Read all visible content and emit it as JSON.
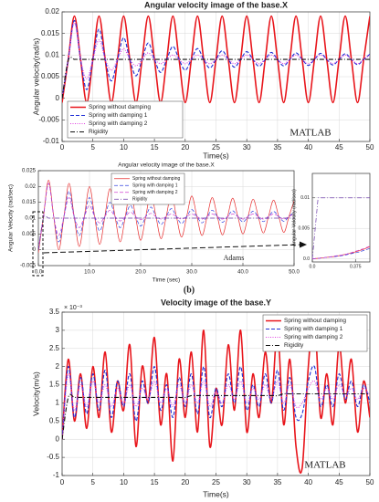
{
  "panel_label": "(b)",
  "chart_data": [
    {
      "type": "line",
      "title": "Angular velocity image of the base.X",
      "xlabel": "Time(s)",
      "ylabel": "Angular velocity(rad/s)",
      "annotation": "MATLAB",
      "xlim": [
        0,
        50
      ],
      "ylim": [
        -0.01,
        0.02
      ],
      "xticks": [
        0,
        5,
        10,
        15,
        20,
        25,
        30,
        35,
        40,
        45,
        50
      ],
      "yticks": [
        -0.01,
        -0.005,
        0,
        0.005,
        0.01,
        0.015,
        0.02
      ],
      "grid": true,
      "legend": "lower left",
      "x": [
        0,
        1,
        2,
        3,
        4,
        5,
        6,
        7,
        8,
        9,
        10,
        11,
        12,
        13,
        14,
        15,
        16,
        17,
        18,
        19,
        20,
        21,
        22,
        23,
        24,
        25,
        26,
        27,
        28,
        29,
        30,
        31,
        32,
        33,
        34,
        35,
        36,
        37,
        38,
        39,
        40,
        41,
        42,
        43,
        44,
        45,
        46,
        47,
        48,
        49,
        50
      ],
      "series": [
        {
          "name": "Spring without damping",
          "color": "#e8151b",
          "dash": "solid",
          "values": [
            -0.001,
            0.009,
            0.019,
            0.009,
            -0.001,
            0.009,
            0.019,
            0.009,
            -0.001,
            0.009,
            0.019,
            0.009,
            -0.001,
            0.009,
            0.019,
            0.009,
            -0.001,
            0.009,
            0.019,
            0.009,
            -0.001,
            0.009,
            0.019,
            0.009,
            -0.001,
            0.009,
            0.019,
            0.009,
            -0.001,
            0.009,
            0.019,
            0.009,
            -0.001,
            0.009,
            0.019,
            0.009,
            -0.001,
            0.009,
            0.019,
            0.009,
            -0.001,
            0.009,
            0.019,
            0.009,
            -0.001,
            0.009,
            0.019,
            0.009,
            -0.001,
            0.009,
            0.019
          ]
        },
        {
          "name": "Spring with damping 1",
          "color": "#1f2fd6",
          "dash": "dashed",
          "values": [
            0,
            0.009,
            0.018,
            0.009,
            0.002,
            0.009,
            0.016,
            0.009,
            0.004,
            0.009,
            0.014,
            0.009,
            0.0052,
            0.009,
            0.0128,
            0.009,
            0.006,
            0.009,
            0.012,
            0.009,
            0.0065,
            0.009,
            0.0115,
            0.009,
            0.007,
            0.009,
            0.011,
            0.009,
            0.0072,
            0.009,
            0.0108,
            0.009,
            0.0074,
            0.009,
            0.0106,
            0.009,
            0.0075,
            0.009,
            0.0105,
            0.009,
            0.0076,
            0.009,
            0.0104,
            0.009,
            0.0077,
            0.009,
            0.0103,
            0.009,
            0.0078,
            0.009,
            0.0102
          ]
        },
        {
          "name": "Spring with damping 2",
          "color": "#e040e0",
          "dash": "dotted",
          "values": [
            0.0005,
            0.009,
            0.0175,
            0.009,
            0.0045,
            0.009,
            0.0135,
            0.009,
            0.0065,
            0.009,
            0.0115,
            0.009,
            0.0075,
            0.009,
            0.0105,
            0.009,
            0.008,
            0.009,
            0.01,
            0.009,
            0.008,
            0.009,
            0.01,
            0.009,
            0.008,
            0.009,
            0.01,
            0.009,
            0.008,
            0.009,
            0.01,
            0.009,
            0.008,
            0.009,
            0.01,
            0.009,
            0.008,
            0.009,
            0.01,
            0.009,
            0.008,
            0.009,
            0.01,
            0.009,
            0.008,
            0.009,
            0.01,
            0.009,
            0.008,
            0.009,
            0.01
          ]
        },
        {
          "name": "Rigidity",
          "color": "#111111",
          "dash": "dashdot",
          "values": [
            0,
            0.0088,
            0.009,
            0.009,
            0.009,
            0.009,
            0.009,
            0.009,
            0.009,
            0.009,
            0.009,
            0.009,
            0.009,
            0.009,
            0.009,
            0.009,
            0.009,
            0.009,
            0.009,
            0.009,
            0.009,
            0.009,
            0.009,
            0.009,
            0.009,
            0.009,
            0.009,
            0.009,
            0.009,
            0.009,
            0.009,
            0.009,
            0.009,
            0.009,
            0.009,
            0.009,
            0.009,
            0.009,
            0.009,
            0.009,
            0.009,
            0.009,
            0.009,
            0.009,
            0.009,
            0.009,
            0.009,
            0.009,
            0.009,
            0.009,
            0.009
          ]
        }
      ]
    },
    {
      "type": "line",
      "title": "Angular velocity image of the base.X",
      "xlabel": "Time (sec)",
      "ylabel": "Angular Velocity (rad/sec)",
      "annotation": "Adams",
      "xlim": [
        0,
        50
      ],
      "ylim": [
        -0.005,
        0.025
      ],
      "xticks": [
        {
          "value": 0,
          "label": "0.0"
        },
        {
          "value": 10,
          "label": "10.0"
        },
        {
          "value": 20,
          "label": "20.0"
        },
        {
          "value": 30,
          "label": "30.0"
        },
        {
          "value": 40,
          "label": "40.0"
        },
        {
          "value": 50,
          "label": "50.0"
        }
      ],
      "yticks": [
        -0.005,
        0,
        0.005,
        0.01,
        0.015,
        0.02,
        0.025
      ],
      "grid": true,
      "legend": "upper center",
      "x": [
        0,
        1,
        2,
        3,
        4,
        5,
        6,
        7,
        8,
        9,
        10,
        11,
        12,
        13,
        14,
        15,
        16,
        17,
        18,
        19,
        20,
        21,
        22,
        23,
        24,
        25,
        26,
        27,
        28,
        29,
        30,
        31,
        32,
        33,
        34,
        35,
        36,
        37,
        38,
        39,
        40,
        41,
        42,
        43,
        44,
        45,
        46,
        47,
        48,
        49,
        50
      ],
      "series": [
        {
          "name": "Spring without damping",
          "color": "#e83030",
          "dash": "solid",
          "values": [
            -0.001,
            0.0105,
            0.022,
            0.0105,
            0,
            0.0105,
            0.021,
            0.0105,
            0.001,
            0.0105,
            0.02,
            0.0105,
            0.0017,
            0.0105,
            0.0193,
            0.0105,
            0.0025,
            0.0105,
            0.0185,
            0.0105,
            0.003,
            0.0105,
            0.018,
            0.0105,
            0.0035,
            0.0105,
            0.0175,
            0.0105,
            0.004,
            0.0105,
            0.017,
            0.0105,
            0.0045,
            0.0105,
            0.0165,
            0.0105,
            0.0047,
            0.0105,
            0.0163,
            0.0105,
            0.005,
            0.0105,
            0.016,
            0.0105,
            0.0053,
            0.0105,
            0.0157,
            0.0105,
            0.0055,
            0.0105,
            0.0155
          ]
        },
        {
          "name": "Spring with damping 1",
          "color": "#3040e0",
          "dash": "dashed",
          "values": [
            0,
            0.0105,
            0.021,
            0.0105,
            0.0025,
            0.0105,
            0.0185,
            0.0105,
            0.0045,
            0.0105,
            0.0165,
            0.0105,
            0.006,
            0.0105,
            0.015,
            0.0105,
            0.007,
            0.0105,
            0.014,
            0.0105,
            0.0075,
            0.0105,
            0.0135,
            0.0105,
            0.008,
            0.0105,
            0.013,
            0.0105,
            0.0083,
            0.0105,
            0.0127,
            0.0105,
            0.0085,
            0.0105,
            0.0125,
            0.0105,
            0.0087,
            0.0105,
            0.0123,
            0.0105,
            0.0088,
            0.0105,
            0.0122,
            0.0105,
            0.0089,
            0.0105,
            0.0121,
            0.0105,
            0.009,
            0.0105,
            0.012
          ]
        },
        {
          "name": "Spring with damping 2",
          "color": "#d040d0",
          "dash": "dashed",
          "values": [
            0,
            0.0105,
            0.021,
            0.0105,
            0.0045,
            0.0105,
            0.0165,
            0.0105,
            0.007,
            0.0105,
            0.014,
            0.0105,
            0.0085,
            0.0105,
            0.0125,
            0.0105,
            0.0091,
            0.0105,
            0.0119,
            0.0105,
            0.0095,
            0.0105,
            0.0115,
            0.0105,
            0.0097,
            0.0105,
            0.0113,
            0.0105,
            0.0097,
            0.0105,
            0.0113,
            0.0105,
            0.0097,
            0.0105,
            0.0113,
            0.0105,
            0.0097,
            0.0105,
            0.0113,
            0.0105,
            0.0097,
            0.0105,
            0.0113,
            0.0105,
            0.0097,
            0.0105,
            0.0113,
            0.0105,
            0.0097,
            0.0105,
            0.0113
          ]
        },
        {
          "name": "Rigidity",
          "color": "#6a3aa8",
          "dash": "dashdot",
          "values": [
            0,
            0.01,
            0.01,
            0.01,
            0.01,
            0.01,
            0.01,
            0.01,
            0.01,
            0.01,
            0.01,
            0.01,
            0.01,
            0.01,
            0.01,
            0.01,
            0.01,
            0.01,
            0.01,
            0.01,
            0.01,
            0.01,
            0.01,
            0.01,
            0.01,
            0.01,
            0.01,
            0.01,
            0.01,
            0.01,
            0.01,
            0.01,
            0.01,
            0.01,
            0.01,
            0.01,
            0.01,
            0.01,
            0.01,
            0.01,
            0.01,
            0.01,
            0.01,
            0.01,
            0.01,
            0.01,
            0.01,
            0.01,
            0.01,
            0.01,
            0.01
          ]
        }
      ]
    },
    {
      "type": "line",
      "ylabel": "Angular Velocity (rad/sec)",
      "xlim": [
        0,
        0.5
      ],
      "ylim": [
        -0.0005,
        0.014
      ],
      "xticks": [
        {
          "value": 0,
          "label": "0.0"
        },
        0.375
      ],
      "yticks": [
        {
          "value": 0,
          "label": "0.0"
        },
        0.005,
        0.01
      ],
      "grid": true,
      "x": [
        0,
        0.05,
        0.1,
        0.15,
        0.2,
        0.25,
        0.3,
        0.35,
        0.4,
        0.45,
        0.5
      ],
      "series": [
        {
          "color": "#e83030",
          "dash": "solid",
          "values": [
            0,
            0.0001,
            0.0002,
            0.0003,
            0.0004,
            0.0006,
            0.0008,
            0.001,
            0.0013,
            0.0016,
            0.002
          ]
        },
        {
          "color": "#3040e0",
          "dash": "dashed",
          "values": [
            0,
            0.0001,
            0.0002,
            0.0003,
            0.0004,
            0.0005,
            0.0007,
            0.0009,
            0.0011,
            0.0014,
            0.0017
          ]
        },
        {
          "color": "#d040d0",
          "dash": "dashed",
          "values": [
            0,
            0.0001,
            0.0002,
            0.0003,
            0.0005,
            0.0006,
            0.0008,
            0.0011,
            0.0014,
            0.0017,
            0.0021
          ]
        },
        {
          "color": "#6a3aa8",
          "dash": "dashdot",
          "values": [
            0,
            0.01,
            0.01,
            0.01,
            0.01,
            0.01,
            0.01,
            0.01,
            0.01,
            0.01,
            0.01
          ]
        }
      ]
    },
    {
      "type": "line",
      "title": "Velocity image of the base.Y",
      "xlabel": "Time(s)",
      "ylabel": "Velocity(m/s)",
      "annotation": "MATLAB",
      "y_scale_label": "× 10⁻³",
      "xlim": [
        0,
        50
      ],
      "ylim": [
        -1,
        3.5
      ],
      "xticks": [
        0,
        5,
        10,
        15,
        20,
        25,
        30,
        35,
        40,
        45,
        50
      ],
      "yticks": [
        -1,
        -0.5,
        0,
        0.5,
        1,
        1.5,
        2,
        2.5,
        3,
        3.5
      ],
      "grid": true,
      "legend": "upper right",
      "x": [
        0,
        1,
        2,
        3,
        4,
        5,
        6,
        7,
        8,
        9,
        10,
        11,
        12,
        13,
        14,
        15,
        16,
        17,
        18,
        19,
        20,
        21,
        22,
        23,
        24,
        25,
        26,
        27,
        28,
        29,
        30,
        31,
        32,
        33,
        34,
        35,
        36,
        37,
        38,
        39,
        40,
        41,
        42,
        43,
        44,
        45,
        46,
        47,
        48,
        49,
        50
      ],
      "series": [
        {
          "name": "Spring without damping",
          "color": "#e8151b",
          "dash": "solid",
          "values": [
            0,
            2.2,
            0.5,
            1.8,
            0.3,
            2.0,
            0.6,
            2.4,
            0.2,
            1.6,
            0.8,
            2.6,
            -0.2,
            2.0,
            1.0,
            2.8,
            0.4,
            1.8,
            -0.6,
            2.2,
            0.6,
            2.4,
            0.2,
            3.0,
            -0.2,
            1.4,
            0.4,
            2.6,
            0.8,
            3.0,
            0.2,
            1.8,
            0.6,
            2.4,
            1.0,
            3.0,
            0.4,
            2.2,
            -0.2,
            -0.8,
            2.0,
            3.3,
            0.6,
            1.8,
            0.4,
            2.6,
            1.0,
            2.2,
            0.2,
            1.6,
            0.6
          ]
        },
        {
          "name": "Spring with damping 1",
          "color": "#1f2fd6",
          "dash": "dashed",
          "values": [
            0,
            2.0,
            0.6,
            1.7,
            0.7,
            1.8,
            0.8,
            1.9,
            0.6,
            1.6,
            0.9,
            1.8,
            0.5,
            1.6,
            1.0,
            2.0,
            0.8,
            1.5,
            0.6,
            1.7,
            0.9,
            1.8,
            0.7,
            2.0,
            0.6,
            1.4,
            0.9,
            1.8,
            1.0,
            2.0,
            0.8,
            1.5,
            0.9,
            1.8,
            1.0,
            1.9,
            0.8,
            1.7,
            0.6,
            0.7,
            1.6,
            2.0,
            0.9,
            1.5,
            0.9,
            1.8,
            1.1,
            1.6,
            0.9,
            1.5,
            1.0
          ]
        },
        {
          "name": "Spring with damping 2",
          "color": "#e040e0",
          "dash": "dotted",
          "values": [
            0,
            1.8,
            0.8,
            1.5,
            0.9,
            1.6,
            1.0,
            1.5,
            0.9,
            1.4,
            1.0,
            1.5,
            0.9,
            1.4,
            1.1,
            1.6,
            1.0,
            1.4,
            0.9,
            1.5,
            1.0,
            1.5,
            1.0,
            1.6,
            0.9,
            1.3,
            1.0,
            1.5,
            1.1,
            1.6,
            1.0,
            1.4,
            1.1,
            1.5,
            1.1,
            1.6,
            1.0,
            1.5,
            0.9,
            1.0,
            1.4,
            1.6,
            1.1,
            1.4,
            1.1,
            1.5,
            1.2,
            1.4,
            1.1,
            1.4,
            1.2
          ]
        },
        {
          "name": "Rigidity",
          "color": "#111111",
          "dash": "dashdot",
          "values": [
            0,
            1.15,
            1.15,
            1.15,
            1.15,
            1.15,
            1.15,
            1.15,
            1.15,
            1.15,
            1.15,
            1.15,
            1.15,
            1.15,
            1.15,
            1.15,
            1.15,
            1.15,
            1.15,
            1.15,
            1.15,
            1.2,
            1.2,
            1.2,
            1.2,
            1.2,
            1.2,
            1.2,
            1.2,
            1.2,
            1.2,
            1.2,
            1.2,
            1.2,
            1.2,
            1.2,
            1.25,
            1.25,
            1.25,
            1.25,
            1.25,
            1.25,
            1.25,
            1.25,
            1.25,
            1.25,
            1.25,
            1.25,
            1.25,
            1.25,
            1.25
          ]
        }
      ]
    }
  ]
}
